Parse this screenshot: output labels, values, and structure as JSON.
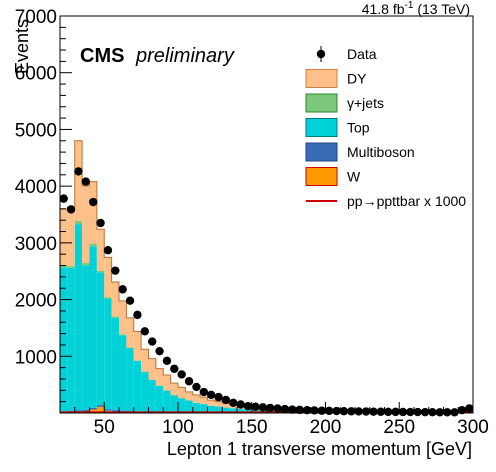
{
  "chart_data": {
    "type": "bar",
    "stacked": true,
    "histogram": true,
    "title": "",
    "experiment": "CMS",
    "status": "preliminary",
    "lumi_value": "41.8 fb",
    "lumi_exp": "-1",
    "lumi_energy": " (13 TeV)",
    "xlabel": "Lepton 1 transverse momentum [GeV]",
    "ylabel": "Events",
    "xlim": [
      20,
      300
    ],
    "ylim": [
      0,
      7000
    ],
    "bin_width": 5,
    "x_ticks": [
      {
        "value": 50,
        "label": "50"
      },
      {
        "value": 100,
        "label": "100"
      },
      {
        "value": 150,
        "label": "150"
      },
      {
        "value": 200,
        "label": "200"
      },
      {
        "value": 250,
        "label": "250"
      },
      {
        "value": 300,
        "label": "300"
      }
    ],
    "y_ticks": [
      {
        "value": 1000,
        "label": "1000"
      },
      {
        "value": 2000,
        "label": "2000"
      },
      {
        "value": 3000,
        "label": "3000"
      },
      {
        "value": 4000,
        "label": "4000"
      },
      {
        "value": 5000,
        "label": "5000"
      },
      {
        "value": 6000,
        "label": "6000"
      },
      {
        "value": 7000,
        "label": "7000"
      }
    ],
    "grid": false,
    "legend_position": "top-right",
    "bin_edges_start": 20,
    "series": [
      {
        "name": "W",
        "color": "#ff9900",
        "stroke": "#cc0000",
        "values": [
          10,
          15,
          20,
          25,
          60,
          110,
          40,
          25,
          20,
          15,
          10,
          10,
          8,
          6,
          5,
          4,
          3,
          3,
          2,
          2,
          2,
          1,
          1,
          1,
          1,
          1,
          1,
          1,
          1,
          1,
          0,
          0,
          0,
          0,
          0,
          0,
          0,
          0,
          0,
          0,
          0,
          0,
          0,
          0,
          0,
          0,
          0,
          0,
          0,
          0,
          0,
          0,
          0,
          0,
          0,
          0
        ]
      },
      {
        "name": "Multiboson",
        "color": "#3a6bb5",
        "stroke": "#224488",
        "values": [
          20,
          25,
          30,
          30,
          30,
          30,
          28,
          25,
          22,
          20,
          18,
          16,
          14,
          12,
          10,
          9,
          8,
          7,
          6,
          5,
          5,
          4,
          4,
          3,
          3,
          3,
          2,
          2,
          2,
          2,
          2,
          1,
          1,
          1,
          1,
          1,
          1,
          1,
          1,
          1,
          1,
          1,
          1,
          1,
          1,
          1,
          1,
          1,
          1,
          1,
          1,
          1,
          1,
          1,
          1,
          1
        ]
      },
      {
        "name": "Top",
        "color": "#00d2d8",
        "stroke": "#007a80",
        "values": [
          2540,
          2520,
          3280,
          2550,
          2850,
          2340,
          1950,
          1630,
          1330,
          1110,
          890,
          700,
          560,
          460,
          380,
          300,
          250,
          210,
          170,
          150,
          120,
          110,
          90,
          80,
          70,
          60,
          55,
          50,
          45,
          40,
          35,
          30,
          28,
          26,
          24,
          22,
          20,
          18,
          17,
          16,
          15,
          14,
          13,
          12,
          11,
          10,
          10,
          9,
          9,
          8,
          8,
          7,
          7,
          6,
          6,
          6
        ]
      },
      {
        "name": "γ+jets",
        "color": "#7cc87c",
        "stroke": "#2a8a2a",
        "values": [
          30,
          35,
          60,
          40,
          40,
          30,
          25,
          20,
          15,
          12,
          10,
          8,
          6,
          5,
          4,
          3,
          3,
          2,
          2,
          2,
          1,
          1,
          1,
          1,
          1,
          1,
          1,
          1,
          1,
          1,
          1,
          1,
          1,
          1,
          1,
          1,
          1,
          1,
          1,
          1,
          1,
          1,
          1,
          1,
          1,
          1,
          1,
          1,
          1,
          1,
          1,
          1,
          1,
          1,
          1,
          1
        ]
      },
      {
        "name": "DY",
        "color": "#fdc089",
        "stroke": "#d08040",
        "values": [
          1000,
          1040,
          1410,
          1360,
          1100,
          730,
          700,
          610,
          590,
          520,
          510,
          390,
          370,
          300,
          270,
          210,
          190,
          150,
          140,
          120,
          100,
          90,
          75,
          65,
          60,
          55,
          45,
          40,
          35,
          30,
          28,
          25,
          22,
          20,
          18,
          16,
          15,
          14,
          13,
          12,
          11,
          10,
          10,
          9,
          9,
          8,
          8,
          7,
          7,
          6,
          6,
          6,
          5,
          5,
          5,
          5
        ]
      }
    ],
    "data": {
      "name": "Data",
      "values": [
        3780,
        3590,
        4260,
        4080,
        3720,
        3350,
        2870,
        2510,
        2180,
        1980,
        1730,
        1440,
        1260,
        1090,
        920,
        780,
        680,
        560,
        460,
        370,
        320,
        280,
        230,
        180,
        150,
        120,
        110,
        100,
        90,
        80,
        70,
        60,
        55,
        50,
        45,
        40,
        38,
        35,
        32,
        30,
        28,
        26,
        24,
        22,
        20,
        20,
        18,
        17,
        16,
        15,
        14,
        13,
        13,
        12,
        50,
        80
      ]
    },
    "signal": {
      "name": "pp→ppttbar x 1000",
      "color": "#cc0000",
      "values": [
        12,
        12,
        12,
        12,
        12,
        12,
        12,
        12,
        12,
        12,
        12,
        12,
        12,
        12,
        12,
        12,
        12,
        12,
        12,
        12,
        12,
        12,
        12,
        12,
        12,
        12,
        12,
        12,
        12,
        12,
        12,
        12,
        12,
        12,
        12,
        12,
        12,
        12,
        12,
        12,
        12,
        12,
        12,
        12,
        12,
        12,
        12,
        12,
        12,
        12,
        12,
        12,
        12,
        12,
        12,
        12
      ]
    },
    "legend": [
      {
        "key": "data",
        "label": "Data",
        "color": "#000000"
      },
      {
        "key": "dy",
        "label": "DY",
        "color": "#fdc089"
      },
      {
        "key": "gjets",
        "label": "γ+jets",
        "color": "#7cc87c"
      },
      {
        "key": "top",
        "label": "Top",
        "color": "#00d2d8"
      },
      {
        "key": "multiboson",
        "label": "Multiboson",
        "color": "#3a6bb5"
      },
      {
        "key": "w",
        "label": "W",
        "color": "#ff9900"
      },
      {
        "key": "signal",
        "label": "pp→ppttbar x 1000",
        "color": "#cc0000"
      }
    ]
  }
}
